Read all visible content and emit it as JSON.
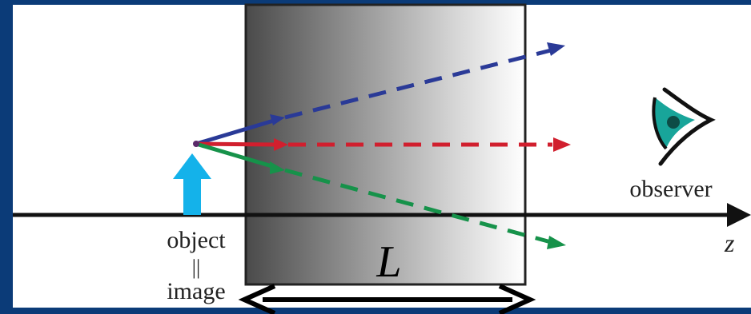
{
  "labels": {
    "object": "object",
    "equals": "||",
    "image": "image",
    "observer": "observer",
    "axis": "z",
    "length": "L"
  },
  "colors": {
    "frame": "#0b3b78",
    "panel": "#ffffff",
    "ray_blue": "#2a3a97",
    "ray_red": "#d11f2e",
    "ray_green": "#16924a",
    "object_arrow": "#14b2ea",
    "eye_iris": "#18a59a",
    "axis": "#111111"
  },
  "icons": {
    "eye": "eye-icon",
    "object_arrow": "up-arrow-icon"
  }
}
